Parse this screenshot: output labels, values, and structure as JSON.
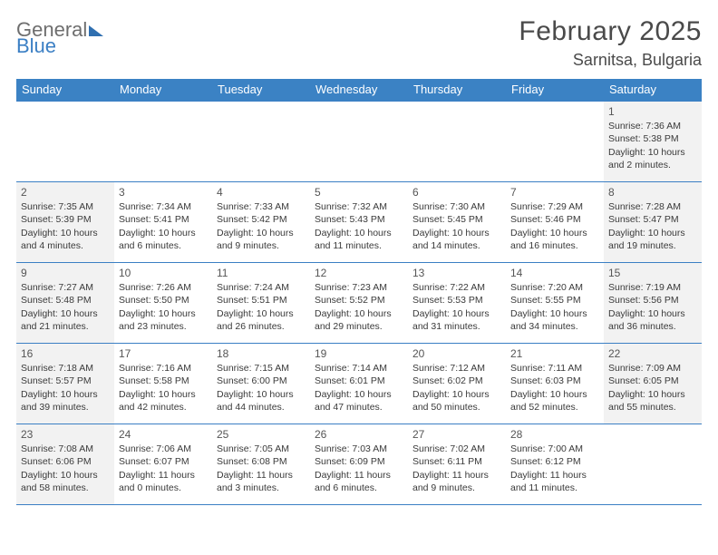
{
  "logo": {
    "text1": "General",
    "text2": "Blue"
  },
  "title": "February 2025",
  "location": "Sarnitsa, Bulgaria",
  "colors": {
    "header_bg": "#3b82c4",
    "header_text": "#ffffff",
    "rule": "#3b7fc4",
    "shaded": "#f2f2f2",
    "body_text": "#3a3a3a",
    "title_text": "#4a4a4a"
  },
  "dow": [
    "Sunday",
    "Monday",
    "Tuesday",
    "Wednesday",
    "Thursday",
    "Friday",
    "Saturday"
  ],
  "weeks": [
    [
      {
        "n": "",
        "sunrise": "",
        "sunset": "",
        "daylight": "",
        "shaded": false
      },
      {
        "n": "",
        "sunrise": "",
        "sunset": "",
        "daylight": "",
        "shaded": false
      },
      {
        "n": "",
        "sunrise": "",
        "sunset": "",
        "daylight": "",
        "shaded": false
      },
      {
        "n": "",
        "sunrise": "",
        "sunset": "",
        "daylight": "",
        "shaded": false
      },
      {
        "n": "",
        "sunrise": "",
        "sunset": "",
        "daylight": "",
        "shaded": false
      },
      {
        "n": "",
        "sunrise": "",
        "sunset": "",
        "daylight": "",
        "shaded": false
      },
      {
        "n": "1",
        "sunrise": "7:36 AM",
        "sunset": "5:38 PM",
        "daylight": "10 hours and 2 minutes.",
        "shaded": true
      }
    ],
    [
      {
        "n": "2",
        "sunrise": "7:35 AM",
        "sunset": "5:39 PM",
        "daylight": "10 hours and 4 minutes.",
        "shaded": true
      },
      {
        "n": "3",
        "sunrise": "7:34 AM",
        "sunset": "5:41 PM",
        "daylight": "10 hours and 6 minutes.",
        "shaded": false
      },
      {
        "n": "4",
        "sunrise": "7:33 AM",
        "sunset": "5:42 PM",
        "daylight": "10 hours and 9 minutes.",
        "shaded": false
      },
      {
        "n": "5",
        "sunrise": "7:32 AM",
        "sunset": "5:43 PM",
        "daylight": "10 hours and 11 minutes.",
        "shaded": false
      },
      {
        "n": "6",
        "sunrise": "7:30 AM",
        "sunset": "5:45 PM",
        "daylight": "10 hours and 14 minutes.",
        "shaded": false
      },
      {
        "n": "7",
        "sunrise": "7:29 AM",
        "sunset": "5:46 PM",
        "daylight": "10 hours and 16 minutes.",
        "shaded": false
      },
      {
        "n": "8",
        "sunrise": "7:28 AM",
        "sunset": "5:47 PM",
        "daylight": "10 hours and 19 minutes.",
        "shaded": true
      }
    ],
    [
      {
        "n": "9",
        "sunrise": "7:27 AM",
        "sunset": "5:48 PM",
        "daylight": "10 hours and 21 minutes.",
        "shaded": true
      },
      {
        "n": "10",
        "sunrise": "7:26 AM",
        "sunset": "5:50 PM",
        "daylight": "10 hours and 23 minutes.",
        "shaded": false
      },
      {
        "n": "11",
        "sunrise": "7:24 AM",
        "sunset": "5:51 PM",
        "daylight": "10 hours and 26 minutes.",
        "shaded": false
      },
      {
        "n": "12",
        "sunrise": "7:23 AM",
        "sunset": "5:52 PM",
        "daylight": "10 hours and 29 minutes.",
        "shaded": false
      },
      {
        "n": "13",
        "sunrise": "7:22 AM",
        "sunset": "5:53 PM",
        "daylight": "10 hours and 31 minutes.",
        "shaded": false
      },
      {
        "n": "14",
        "sunrise": "7:20 AM",
        "sunset": "5:55 PM",
        "daylight": "10 hours and 34 minutes.",
        "shaded": false
      },
      {
        "n": "15",
        "sunrise": "7:19 AM",
        "sunset": "5:56 PM",
        "daylight": "10 hours and 36 minutes.",
        "shaded": true
      }
    ],
    [
      {
        "n": "16",
        "sunrise": "7:18 AM",
        "sunset": "5:57 PM",
        "daylight": "10 hours and 39 minutes.",
        "shaded": true
      },
      {
        "n": "17",
        "sunrise": "7:16 AM",
        "sunset": "5:58 PM",
        "daylight": "10 hours and 42 minutes.",
        "shaded": false
      },
      {
        "n": "18",
        "sunrise": "7:15 AM",
        "sunset": "6:00 PM",
        "daylight": "10 hours and 44 minutes.",
        "shaded": false
      },
      {
        "n": "19",
        "sunrise": "7:14 AM",
        "sunset": "6:01 PM",
        "daylight": "10 hours and 47 minutes.",
        "shaded": false
      },
      {
        "n": "20",
        "sunrise": "7:12 AM",
        "sunset": "6:02 PM",
        "daylight": "10 hours and 50 minutes.",
        "shaded": false
      },
      {
        "n": "21",
        "sunrise": "7:11 AM",
        "sunset": "6:03 PM",
        "daylight": "10 hours and 52 minutes.",
        "shaded": false
      },
      {
        "n": "22",
        "sunrise": "7:09 AM",
        "sunset": "6:05 PM",
        "daylight": "10 hours and 55 minutes.",
        "shaded": true
      }
    ],
    [
      {
        "n": "23",
        "sunrise": "7:08 AM",
        "sunset": "6:06 PM",
        "daylight": "10 hours and 58 minutes.",
        "shaded": true
      },
      {
        "n": "24",
        "sunrise": "7:06 AM",
        "sunset": "6:07 PM",
        "daylight": "11 hours and 0 minutes.",
        "shaded": false
      },
      {
        "n": "25",
        "sunrise": "7:05 AM",
        "sunset": "6:08 PM",
        "daylight": "11 hours and 3 minutes.",
        "shaded": false
      },
      {
        "n": "26",
        "sunrise": "7:03 AM",
        "sunset": "6:09 PM",
        "daylight": "11 hours and 6 minutes.",
        "shaded": false
      },
      {
        "n": "27",
        "sunrise": "7:02 AM",
        "sunset": "6:11 PM",
        "daylight": "11 hours and 9 minutes.",
        "shaded": false
      },
      {
        "n": "28",
        "sunrise": "7:00 AM",
        "sunset": "6:12 PM",
        "daylight": "11 hours and 11 minutes.",
        "shaded": false
      },
      {
        "n": "",
        "sunrise": "",
        "sunset": "",
        "daylight": "",
        "shaded": false
      }
    ]
  ]
}
